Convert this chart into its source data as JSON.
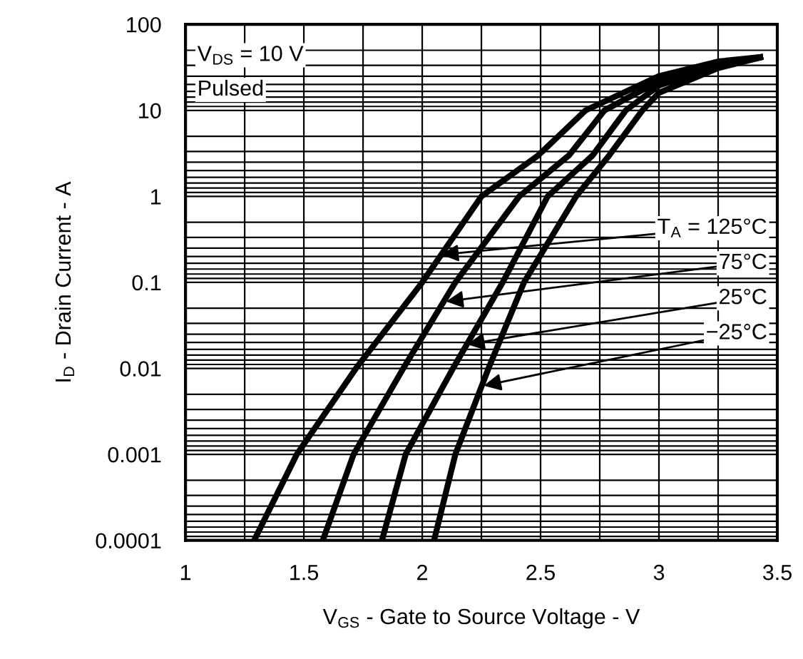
{
  "chart_data": {
    "type": "line",
    "xlabel": "V$_{GS}$ - Gate to Source Voltage - V",
    "ylabel": "I$_{D}$ - Drain Current - A",
    "log": "y",
    "grid": true,
    "legend": false,
    "marker": "none",
    "line_style": "solid",
    "xlim": [
      1,
      3.5
    ],
    "xticks": [
      1,
      1.5,
      2,
      2.5,
      3,
      3.5
    ],
    "ylim": [
      0.0001,
      100
    ],
    "yticks": [
      0.0001,
      0.001,
      0.01,
      0.1,
      1,
      10,
      100
    ],
    "series": [
      {
        "color": "#000000",
        "x": [
          1.29,
          1.47,
          1.72,
          2.0,
          2.25,
          2.49,
          2.69,
          3.0,
          3.25,
          3.44
        ],
        "values": [
          0.0001,
          0.001,
          0.01,
          0.1,
          1,
          3,
          10,
          25,
          37,
          42
        ]
      },
      {
        "color": "#000000",
        "x": [
          1.58,
          1.71,
          1.92,
          2.14,
          2.41,
          2.62,
          2.77,
          3.0,
          3.25,
          3.44
        ],
        "values": [
          0.0001,
          0.001,
          0.01,
          0.1,
          1,
          3,
          10,
          22,
          35,
          42
        ]
      },
      {
        "color": "#000000",
        "x": [
          1.83,
          1.93,
          2.13,
          2.34,
          2.53,
          2.72,
          2.86,
          3.0,
          3.25,
          3.44
        ],
        "values": [
          0.0001,
          0.001,
          0.01,
          0.1,
          1,
          3,
          10,
          19.5,
          33,
          42
        ]
      },
      {
        "color": "#000000",
        "x": [
          2.05,
          2.14,
          2.28,
          2.43,
          2.65,
          2.79,
          2.93,
          3.0,
          3.25,
          3.44
        ],
        "values": [
          0.0001,
          0.001,
          0.01,
          0.1,
          1,
          3,
          10,
          16,
          31,
          42
        ]
      }
    ],
    "annotations": [
      "V$_{DS}$ = 10 V",
      "Pulsed",
      {
        "text": "T$_{A}$ = 125°C",
        "x": 2.08,
        "y": 0.21
      },
      {
        "text": "75°C",
        "x": 2.1,
        "y": 0.06
      },
      {
        "text": "25°C",
        "x": 2.19,
        "y": 0.019
      },
      {
        "text": "−25°C",
        "x": 2.26,
        "y": 0.0063
      }
    ]
  }
}
